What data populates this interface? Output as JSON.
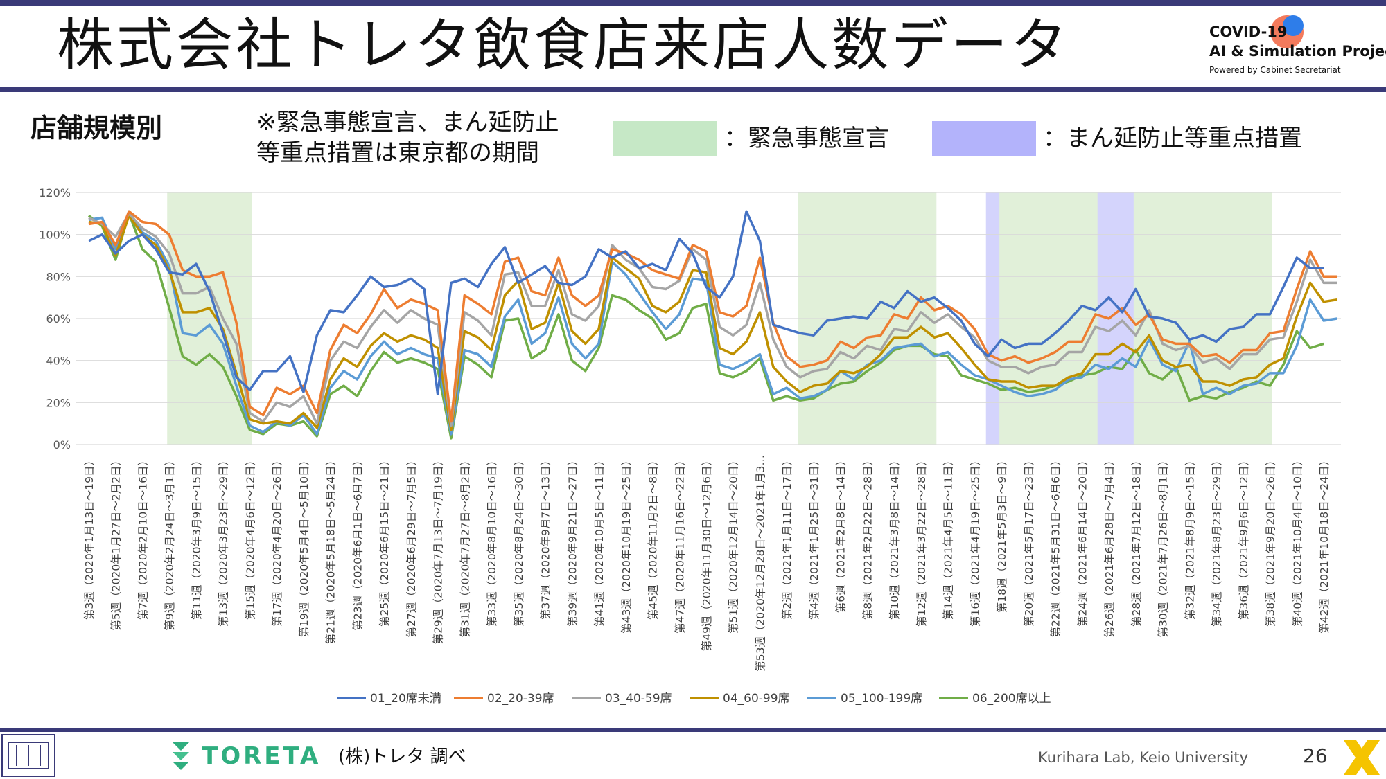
{
  "header": {
    "title": "株式会社トレタ飲食店来店人数データ",
    "logo_line1": "COVID-19",
    "logo_line2": "AI & Simulation Project",
    "logo_line3": "Powered by Cabinet Secretariat"
  },
  "subtitle": "店舗規模別",
  "note_line1": "※緊急事態宣言、まん延防止",
  "note_line2": "等重点措置は東京都の期間",
  "period_legend": [
    {
      "label": "：緊急事態宣言",
      "color": "#c6e8c6"
    },
    {
      "label": "：まん延防止等重点措置",
      "color": "#b3b3fb"
    }
  ],
  "chart_data": {
    "type": "line",
    "ylim": [
      0,
      120
    ],
    "yticks": [
      "0%",
      "20%",
      "40%",
      "60%",
      "80%",
      "100%",
      "120%"
    ],
    "grid": true,
    "legend_position": "bottom",
    "x_tick_labels": [
      "第3週（2020年1月13日～19日）",
      "第5週（2020年1月27日～2月2日）",
      "第7週（2020年2月10日～16日）",
      "第9週（2020年2月24日～3月1日）",
      "第11週（2020年3月9日～15日）",
      "第13週（2020年3月23日～29日）",
      "第15週（2020年4月6日～12日）",
      "第17週（2020年4月20日～26日）",
      "第19週（2020年5月4日～5月10日）",
      "第21週（2020年5月18日～5月24日）",
      "第23週（2020年6月1日～6月7日）",
      "第25週（2020年6月15日～21日）",
      "第27週（2020年6月29日～7月5日）",
      "第29週（2020年7月13日～7月19日）",
      "第31週（2020年7月27日～8月2日）",
      "第33週（2020年8月10日～16日）",
      "第35週（2020年8月24日～30日）",
      "第37週（2020年9月7日～13日）",
      "第39週（2020年9月21日～27日）",
      "第41週（2020年10月5日～11日）",
      "第43週（2020年10月19日～25日）",
      "第45週（2020年11月2日～8日）",
      "第47週（2020年11月16日～22日）",
      "第49週（2020年11月30日～12月6日）",
      "第51週（2020年12月14日～20日）",
      "第53週（2020年12月28日～2021年1月3…",
      "第2週（2021年1月11日～17日）",
      "第4週（2021年1月25日～31日）",
      "第6週（2021年2月8日～14日）",
      "第8週（2021年2月22日～28日）",
      "第10週（2021年3月8日～14日）",
      "第12週（2021年3月22日～28日）",
      "第14週（2021年4月5日～11日）",
      "第16週（2021年4月19日～25日）",
      "第18週（2021年5月3日～9日）",
      "第20週（2021年5月17日～23日）",
      "第22週（2021年5月31日～6月6日）",
      "第24週（2021年6月14日～20日）",
      "第26週（2021年6月28日～7月4日）",
      "第28週（2021年7月12日～18日）",
      "第30週（2021年7月26日～8月1日）",
      "第32週（2021年8月9日～15日）",
      "第34週（2021年8月23日～29日）",
      "第36週（2021年9月6日～12日）",
      "第38週（2021年9月20日～26日）",
      "第40週（2021年10月4日～10日）",
      "第42週（2021年10月18日～24日）"
    ],
    "shaded_periods": [
      {
        "kind": "emergency",
        "from": 6,
        "to": 12
      },
      {
        "kind": "emergency",
        "from": 53,
        "to": 63
      },
      {
        "kind": "priority",
        "from": 67,
        "to": 68
      },
      {
        "kind": "priority",
        "from": 75,
        "to": 78
      },
      {
        "kind": "emergency",
        "from": 68,
        "to": 75
      },
      {
        "kind": "emergency",
        "from": 78,
        "to": 88
      }
    ],
    "series": [
      {
        "name": "01_20席未満",
        "color": "#4472c4",
        "values": [
          97,
          100,
          91,
          97,
          100,
          93,
          82,
          81,
          86,
          73,
          53,
          32,
          26,
          35,
          35,
          42,
          25,
          52,
          64,
          63,
          71,
          80,
          75,
          76,
          79,
          74,
          24,
          77,
          79,
          75,
          86,
          94,
          77,
          81,
          85,
          77,
          76,
          80,
          93,
          89,
          92,
          84,
          86,
          83,
          98,
          91,
          75,
          70,
          80,
          111,
          97,
          57,
          55,
          53,
          52,
          59,
          60,
          61,
          60,
          68,
          65,
          73,
          68,
          70,
          65,
          59,
          48,
          42,
          50,
          46,
          48,
          48,
          53,
          59,
          66,
          64,
          70,
          63,
          74,
          61,
          60,
          58,
          50,
          52,
          49,
          55,
          56,
          62,
          62,
          75,
          89,
          84,
          84
        ]
      },
      {
        "name": "02_20-39席",
        "color": "#ed7d31",
        "values": [
          105,
          106,
          95,
          111,
          106,
          105,
          100,
          83,
          80,
          80,
          82,
          58,
          18,
          14,
          27,
          24,
          28,
          15,
          45,
          57,
          53,
          62,
          74,
          65,
          69,
          67,
          64,
          11,
          71,
          67,
          62,
          87,
          89,
          73,
          71,
          89,
          71,
          66,
          71,
          93,
          91,
          88,
          83,
          81,
          79,
          95,
          92,
          63,
          61,
          66,
          89,
          58,
          42,
          37,
          38,
          40,
          49,
          46,
          51,
          52,
          62,
          60,
          70,
          64,
          66,
          62,
          55,
          43,
          40,
          42,
          39,
          41,
          44,
          49,
          49,
          62,
          60,
          65,
          57,
          62,
          50,
          48,
          48,
          42,
          43,
          39,
          45,
          45,
          53,
          54,
          74,
          92,
          80,
          80
        ]
      },
      {
        "name": "03_40-59席",
        "color": "#a5a5a5",
        "values": [
          108,
          105,
          99,
          110,
          103,
          99,
          91,
          72,
          72,
          75,
          60,
          48,
          15,
          11,
          20,
          18,
          23,
          10,
          40,
          49,
          46,
          56,
          64,
          58,
          64,
          60,
          57,
          9,
          63,
          59,
          52,
          81,
          82,
          66,
          66,
          83,
          62,
          59,
          66,
          95,
          88,
          84,
          75,
          74,
          78,
          93,
          88,
          56,
          52,
          57,
          77,
          50,
          37,
          32,
          35,
          36,
          44,
          41,
          47,
          45,
          55,
          54,
          63,
          58,
          62,
          56,
          51,
          40,
          37,
          37,
          34,
          37,
          38,
          44,
          44,
          56,
          54,
          59,
          52,
          64,
          48,
          45,
          47,
          39,
          41,
          36,
          43,
          43,
          50,
          51,
          68,
          88,
          77,
          77
        ]
      },
      {
        "name": "04_60-99席",
        "color": "#bf9000",
        "values": [
          106,
          105,
          90,
          109,
          100,
          95,
          83,
          63,
          63,
          65,
          55,
          34,
          12,
          10,
          11,
          10,
          15,
          8,
          31,
          41,
          37,
          47,
          53,
          49,
          52,
          50,
          46,
          7,
          54,
          51,
          45,
          71,
          78,
          55,
          58,
          77,
          54,
          48,
          55,
          89,
          84,
          79,
          66,
          63,
          68,
          83,
          82,
          46,
          43,
          49,
          63,
          37,
          30,
          25,
          28,
          29,
          35,
          34,
          37,
          43,
          51,
          51,
          56,
          51,
          53,
          46,
          38,
          31,
          30,
          30,
          27,
          28,
          28,
          32,
          34,
          43,
          43,
          48,
          44,
          52,
          40,
          37,
          38,
          30,
          30,
          28,
          31,
          32,
          38,
          41,
          61,
          77,
          68,
          69
        ]
      },
      {
        "name": "05_100-199席",
        "color": "#5b9bd5",
        "values": [
          107,
          108,
          93,
          111,
          101,
          97,
          85,
          53,
          52,
          57,
          48,
          28,
          9,
          6,
          11,
          9,
          14,
          5,
          27,
          35,
          31,
          42,
          49,
          43,
          46,
          43,
          41,
          5,
          45,
          43,
          37,
          61,
          69,
          48,
          53,
          70,
          48,
          41,
          48,
          87,
          81,
          72,
          63,
          55,
          62,
          79,
          78,
          38,
          36,
          39,
          43,
          24,
          27,
          22,
          23,
          26,
          35,
          31,
          38,
          40,
          46,
          47,
          48,
          42,
          44,
          38,
          33,
          31,
          28,
          25,
          23,
          24,
          26,
          31,
          32,
          38,
          36,
          41,
          37,
          50,
          38,
          35,
          49,
          24,
          27,
          24,
          28,
          29,
          34,
          34,
          47,
          69,
          59,
          60
        ]
      },
      {
        "name": "06_200席以上",
        "color": "#70ad47",
        "values": [
          109,
          104,
          88,
          110,
          93,
          87,
          65,
          42,
          38,
          43,
          37,
          23,
          7,
          5,
          10,
          9,
          11,
          4,
          24,
          28,
          23,
          35,
          44,
          39,
          41,
          39,
          36,
          3,
          42,
          38,
          32,
          59,
          60,
          41,
          45,
          62,
          40,
          35,
          46,
          71,
          69,
          64,
          60,
          50,
          53,
          65,
          67,
          34,
          32,
          35,
          41,
          21,
          23,
          21,
          22,
          26,
          29,
          30,
          35,
          39,
          45,
          47,
          47,
          43,
          42,
          33,
          31,
          29,
          26,
          27,
          25,
          26,
          28,
          30,
          33,
          34,
          37,
          36,
          45,
          34,
          31,
          37,
          21,
          23,
          22,
          25,
          27,
          30,
          28,
          38,
          54,
          46,
          48
        ]
      }
    ]
  },
  "footer": {
    "toreta": "TORETA",
    "source": "(株)トレタ 調べ",
    "lab": "Kurihara Lab, Keio University",
    "page": "26"
  }
}
